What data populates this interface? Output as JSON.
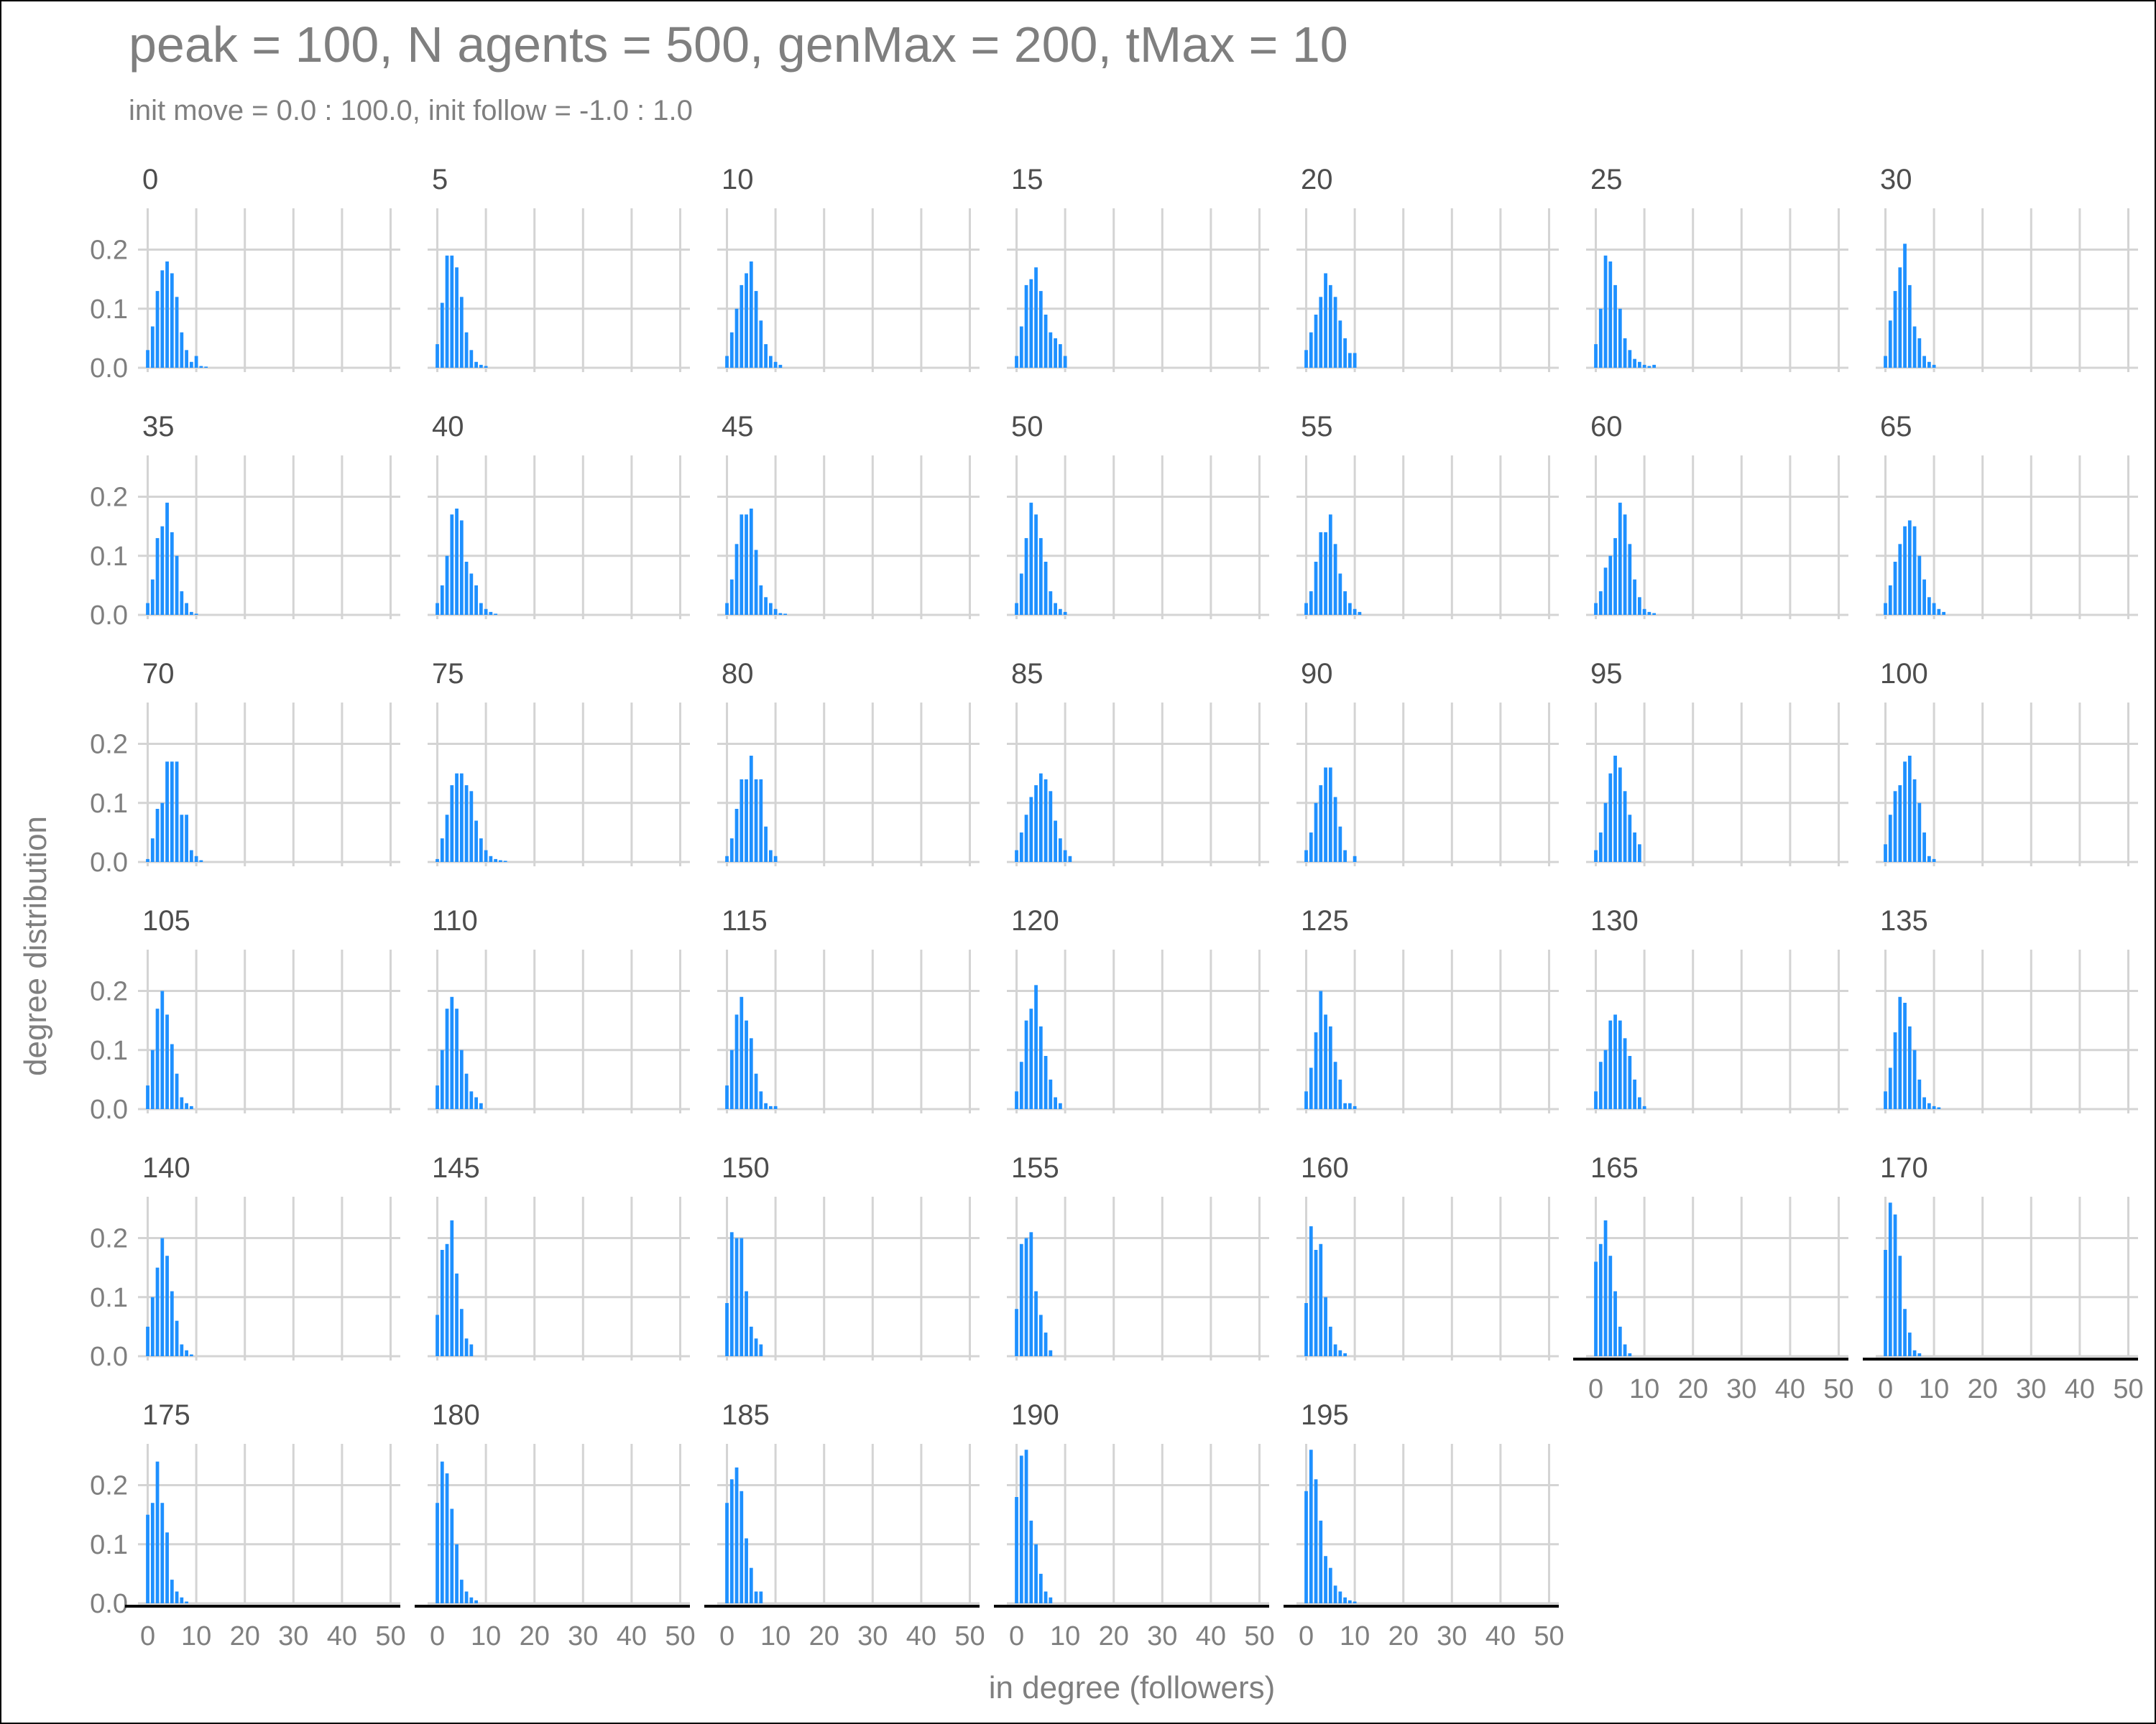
{
  "chart_data": {
    "type": "bar",
    "title": "peak = 100, N agents = 500, genMax = 200, tMax = 10",
    "subtitle": "init move = 0.0 : 100.0, init follow = -1.0 : 1.0",
    "xlabel": "in degree (followers)",
    "ylabel": "degree distribution",
    "xlim": [
      -2,
      52
    ],
    "ylim": [
      0,
      0.27
    ],
    "x_ticks": [
      0,
      10,
      20,
      30,
      40,
      50
    ],
    "x_tick_labels": [
      "0",
      "10",
      "20",
      "30",
      "40",
      "50"
    ],
    "y_ticks": [
      0,
      0.1,
      0.2
    ],
    "y_tick_labels": [
      "0.0",
      "0.1",
      "0.2"
    ],
    "grid": true,
    "bar_color": "#1e90ff",
    "facet_columns": 7,
    "panels": [
      {
        "label": "0",
        "values": [
          0.03,
          0.07,
          0.13,
          0.165,
          0.18,
          0.16,
          0.12,
          0.06,
          0.03,
          0.01,
          0.02,
          0.003,
          0.002
        ]
      },
      {
        "label": "5",
        "values": [
          0.04,
          0.11,
          0.19,
          0.19,
          0.17,
          0.12,
          0.06,
          0.03,
          0.01,
          0.005,
          0.003
        ]
      },
      {
        "label": "10",
        "values": [
          0.02,
          0.06,
          0.1,
          0.14,
          0.16,
          0.18,
          0.13,
          0.08,
          0.04,
          0.02,
          0.01,
          0.005
        ]
      },
      {
        "label": "15",
        "values": [
          0.02,
          0.07,
          0.14,
          0.15,
          0.17,
          0.13,
          0.09,
          0.06,
          0.05,
          0.04,
          0.02
        ]
      },
      {
        "label": "20",
        "values": [
          0.03,
          0.06,
          0.09,
          0.12,
          0.16,
          0.14,
          0.12,
          0.08,
          0.05,
          0.025,
          0.025
        ]
      },
      {
        "label": "25",
        "values": [
          0.04,
          0.1,
          0.19,
          0.18,
          0.14,
          0.1,
          0.05,
          0.03,
          0.015,
          0.01,
          0.005,
          0.003,
          0.005
        ]
      },
      {
        "label": "30",
        "values": [
          0.02,
          0.08,
          0.13,
          0.17,
          0.21,
          0.14,
          0.07,
          0.05,
          0.02,
          0.01,
          0.005
        ]
      },
      {
        "label": "35",
        "values": [
          0.02,
          0.06,
          0.13,
          0.15,
          0.19,
          0.14,
          0.1,
          0.04,
          0.02,
          0.005,
          0.002
        ]
      },
      {
        "label": "40",
        "values": [
          0.02,
          0.05,
          0.1,
          0.17,
          0.18,
          0.16,
          0.09,
          0.07,
          0.05,
          0.02,
          0.01,
          0.005,
          0.002
        ]
      },
      {
        "label": "45",
        "values": [
          0.02,
          0.06,
          0.12,
          0.17,
          0.17,
          0.18,
          0.11,
          0.05,
          0.03,
          0.02,
          0.01,
          0.003,
          0.002
        ]
      },
      {
        "label": "50",
        "values": [
          0.02,
          0.07,
          0.13,
          0.19,
          0.17,
          0.13,
          0.09,
          0.04,
          0.02,
          0.01,
          0.005
        ]
      },
      {
        "label": "55",
        "values": [
          0.02,
          0.04,
          0.09,
          0.14,
          0.14,
          0.17,
          0.12,
          0.07,
          0.04,
          0.02,
          0.01,
          0.005
        ]
      },
      {
        "label": "60",
        "values": [
          0.02,
          0.04,
          0.08,
          0.1,
          0.13,
          0.19,
          0.17,
          0.12,
          0.06,
          0.03,
          0.01,
          0.005,
          0.003
        ]
      },
      {
        "label": "65",
        "values": [
          0.02,
          0.05,
          0.09,
          0.12,
          0.15,
          0.16,
          0.15,
          0.1,
          0.06,
          0.03,
          0.02,
          0.01,
          0.005
        ]
      },
      {
        "label": "70",
        "values": [
          0.005,
          0.04,
          0.09,
          0.1,
          0.17,
          0.17,
          0.17,
          0.08,
          0.08,
          0.02,
          0.01,
          0.003
        ]
      },
      {
        "label": "75",
        "values": [
          0.005,
          0.04,
          0.08,
          0.13,
          0.15,
          0.15,
          0.13,
          0.12,
          0.07,
          0.04,
          0.02,
          0.01,
          0.005,
          0.003,
          0.002
        ]
      },
      {
        "label": "80",
        "values": [
          0.01,
          0.04,
          0.09,
          0.14,
          0.14,
          0.18,
          0.14,
          0.14,
          0.06,
          0.02,
          0.01
        ]
      },
      {
        "label": "85",
        "values": [
          0.02,
          0.05,
          0.08,
          0.11,
          0.13,
          0.15,
          0.14,
          0.12,
          0.07,
          0.04,
          0.02,
          0.01
        ]
      },
      {
        "label": "90",
        "values": [
          0.02,
          0.05,
          0.1,
          0.13,
          0.16,
          0.16,
          0.11,
          0.06,
          0.02,
          0.0,
          0.01
        ]
      },
      {
        "label": "95",
        "values": [
          0.02,
          0.05,
          0.1,
          0.15,
          0.18,
          0.16,
          0.12,
          0.08,
          0.05,
          0.03
        ]
      },
      {
        "label": "100",
        "values": [
          0.03,
          0.08,
          0.12,
          0.13,
          0.17,
          0.18,
          0.14,
          0.1,
          0.05,
          0.01,
          0.005
        ]
      },
      {
        "label": "105",
        "values": [
          0.04,
          0.1,
          0.17,
          0.2,
          0.16,
          0.11,
          0.06,
          0.02,
          0.01,
          0.005
        ]
      },
      {
        "label": "110",
        "values": [
          0.04,
          0.1,
          0.17,
          0.19,
          0.17,
          0.1,
          0.06,
          0.03,
          0.02,
          0.01
        ]
      },
      {
        "label": "115",
        "values": [
          0.04,
          0.1,
          0.16,
          0.19,
          0.15,
          0.12,
          0.06,
          0.03,
          0.01,
          0.005,
          0.005
        ]
      },
      {
        "label": "120",
        "values": [
          0.03,
          0.08,
          0.15,
          0.17,
          0.21,
          0.14,
          0.09,
          0.05,
          0.02,
          0.01
        ]
      },
      {
        "label": "125",
        "values": [
          0.03,
          0.07,
          0.13,
          0.2,
          0.16,
          0.14,
          0.08,
          0.05,
          0.01,
          0.01,
          0.005
        ]
      },
      {
        "label": "130",
        "values": [
          0.03,
          0.08,
          0.1,
          0.15,
          0.16,
          0.15,
          0.12,
          0.09,
          0.05,
          0.02,
          0.005
        ]
      },
      {
        "label": "135",
        "values": [
          0.03,
          0.07,
          0.13,
          0.19,
          0.18,
          0.14,
          0.1,
          0.05,
          0.02,
          0.01,
          0.005,
          0.003
        ]
      },
      {
        "label": "140",
        "values": [
          0.05,
          0.1,
          0.15,
          0.2,
          0.17,
          0.11,
          0.06,
          0.02,
          0.01,
          0.003
        ]
      },
      {
        "label": "145",
        "values": [
          0.07,
          0.18,
          0.19,
          0.23,
          0.14,
          0.08,
          0.03,
          0.02
        ]
      },
      {
        "label": "150",
        "values": [
          0.09,
          0.21,
          0.2,
          0.2,
          0.11,
          0.05,
          0.03,
          0.02
        ]
      },
      {
        "label": "155",
        "values": [
          0.08,
          0.19,
          0.2,
          0.21,
          0.11,
          0.07,
          0.04,
          0.01
        ]
      },
      {
        "label": "160",
        "values": [
          0.09,
          0.22,
          0.18,
          0.19,
          0.1,
          0.05,
          0.02,
          0.01,
          0.005
        ]
      },
      {
        "label": "165",
        "values": [
          0.16,
          0.19,
          0.23,
          0.17,
          0.11,
          0.05,
          0.02,
          0.005
        ]
      },
      {
        "label": "170",
        "values": [
          0.18,
          0.26,
          0.24,
          0.17,
          0.08,
          0.04,
          0.01,
          0.005
        ]
      },
      {
        "label": "175",
        "values": [
          0.15,
          0.17,
          0.24,
          0.17,
          0.12,
          0.04,
          0.02,
          0.01,
          0.003
        ]
      },
      {
        "label": "180",
        "values": [
          0.17,
          0.24,
          0.22,
          0.16,
          0.1,
          0.04,
          0.02,
          0.01,
          0.005
        ]
      },
      {
        "label": "185",
        "values": [
          0.17,
          0.21,
          0.23,
          0.19,
          0.11,
          0.06,
          0.02,
          0.02
        ]
      },
      {
        "label": "190",
        "values": [
          0.18,
          0.25,
          0.26,
          0.14,
          0.1,
          0.05,
          0.02,
          0.01
        ]
      },
      {
        "label": "195",
        "values": [
          0.19,
          0.26,
          0.21,
          0.14,
          0.08,
          0.06,
          0.03,
          0.02,
          0.01,
          0.005,
          0.003
        ]
      }
    ]
  }
}
